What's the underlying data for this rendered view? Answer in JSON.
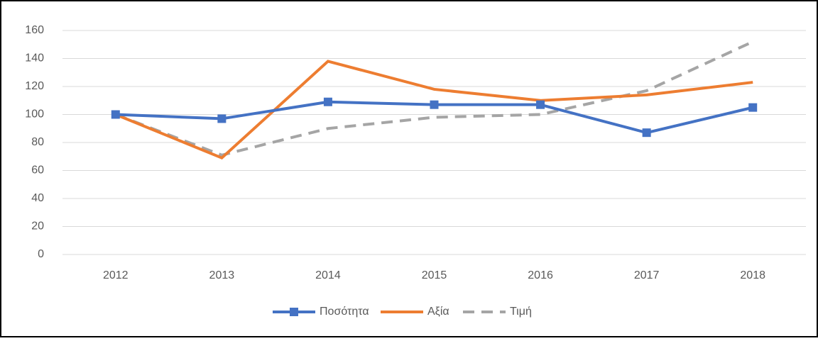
{
  "chart_data": {
    "type": "line",
    "categories": [
      "2012",
      "2013",
      "2014",
      "2015",
      "2016",
      "2017",
      "2018"
    ],
    "series": [
      {
        "name": "Ποσότητα",
        "color": "#4472c4",
        "marker": "square",
        "dash": false,
        "values": [
          100,
          97,
          109,
          107,
          107,
          87,
          105
        ]
      },
      {
        "name": "Αξία",
        "color": "#ed7d31",
        "marker": "none",
        "dash": false,
        "values": [
          100,
          69,
          138,
          118,
          110,
          114,
          123
        ]
      },
      {
        "name": "Τιμή",
        "color": "#a5a5a5",
        "marker": "none",
        "dash": true,
        "values": [
          100,
          71,
          90,
          98,
          100,
          117,
          152
        ]
      }
    ],
    "ylim": [
      0,
      160
    ],
    "yticks": [
      0,
      20,
      40,
      60,
      80,
      100,
      120,
      140,
      160
    ],
    "grid": true,
    "legend": "bottom"
  }
}
